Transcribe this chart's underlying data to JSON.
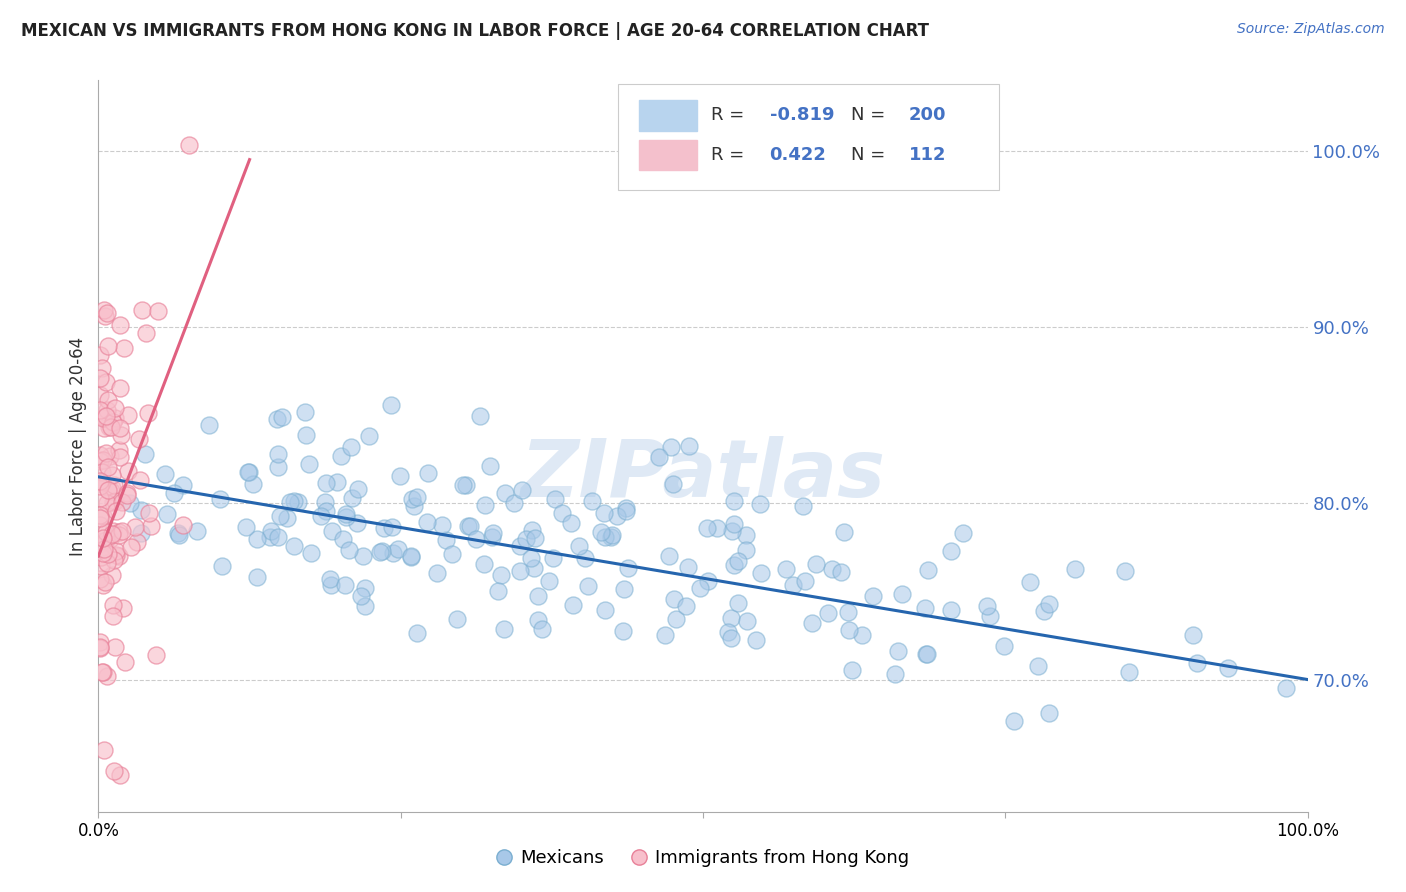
{
  "title": "MEXICAN VS IMMIGRANTS FROM HONG KONG IN LABOR FORCE | AGE 20-64 CORRELATION CHART",
  "source": "Source: ZipAtlas.com",
  "ylabel": "In Labor Force | Age 20-64",
  "blue_R": -0.819,
  "blue_N": 200,
  "pink_R": 0.422,
  "pink_N": 112,
  "blue_color": "#a8c8e8",
  "blue_edge_color": "#7aaed0",
  "blue_line_color": "#2565ae",
  "pink_color": "#f8c0cc",
  "pink_edge_color": "#e88098",
  "pink_line_color": "#e06080",
  "watermark": "ZIPatlas",
  "legend_label_blue": "Mexicans",
  "legend_label_pink": "Immigrants from Hong Kong",
  "ytick_values": [
    0.7,
    0.8,
    0.9,
    1.0
  ],
  "xmin": 0.0,
  "xmax": 1.0,
  "ymin": 0.625,
  "ymax": 1.04
}
